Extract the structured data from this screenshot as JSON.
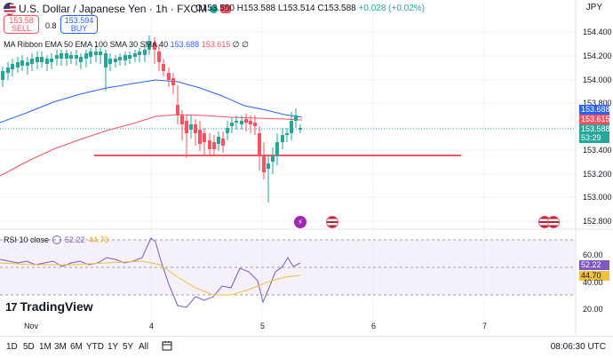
{
  "header": {
    "title": "U.S. Dollar / Japanese Yen · 1h · FXCM",
    "ohlc": {
      "open": "O153.560",
      "high": "H153.588",
      "low": "L153.514",
      "close": "C153.588",
      "change": "+0.028 (+0.02%)"
    },
    "currency": "JPY"
  },
  "trade": {
    "sell_price": "153.58",
    "sell_label": "SELL",
    "spread": "0.8",
    "buy_price": "153.594",
    "buy_label": "BUY"
  },
  "indicator": {
    "name": "MA Ribbon EMA 50 EMA 100 SMA 30 SMA 40",
    "ema50_value": "153.688",
    "ema100_value": "153.615",
    "extra": "∅ ∅"
  },
  "rsi": {
    "name": "RSI 10 close",
    "rsi_value": "52.22",
    "ma_value": "44.70"
  },
  "price_axis": {
    "ticks": [
      "154.400",
      "154.200",
      "154.000",
      "153.800",
      "153.400",
      "153.200",
      "153.000",
      "152.800"
    ],
    "tag_ema50": "153.688",
    "tag_ema100": "153.615",
    "tag_last": "153.588",
    "tag_countdown": "53:29"
  },
  "rsi_axis": {
    "ticks": [
      "60.00",
      "40.00",
      "20.00"
    ],
    "tag_rsi": "52.22",
    "tag_ma": "44.70"
  },
  "time_axis": {
    "labels": [
      "Nov",
      "4",
      "5",
      "6",
      "7"
    ]
  },
  "branding": {
    "logo_mark": "17",
    "logo_text": "TradingView"
  },
  "bottom_bar": {
    "timeframes": [
      "1D",
      "5D",
      "1M",
      "3M",
      "6M",
      "YTD",
      "1Y",
      "5Y",
      "All"
    ],
    "clock": "08:06:30 UTC"
  },
  "colors": {
    "up": "#26a69a",
    "down": "#f7525f",
    "ema50": "#2962ff",
    "ema100": "#f7525f",
    "rsi": "#7e57c2",
    "rsi_ma": "#f0c040",
    "hline": "#f7525f"
  }
}
